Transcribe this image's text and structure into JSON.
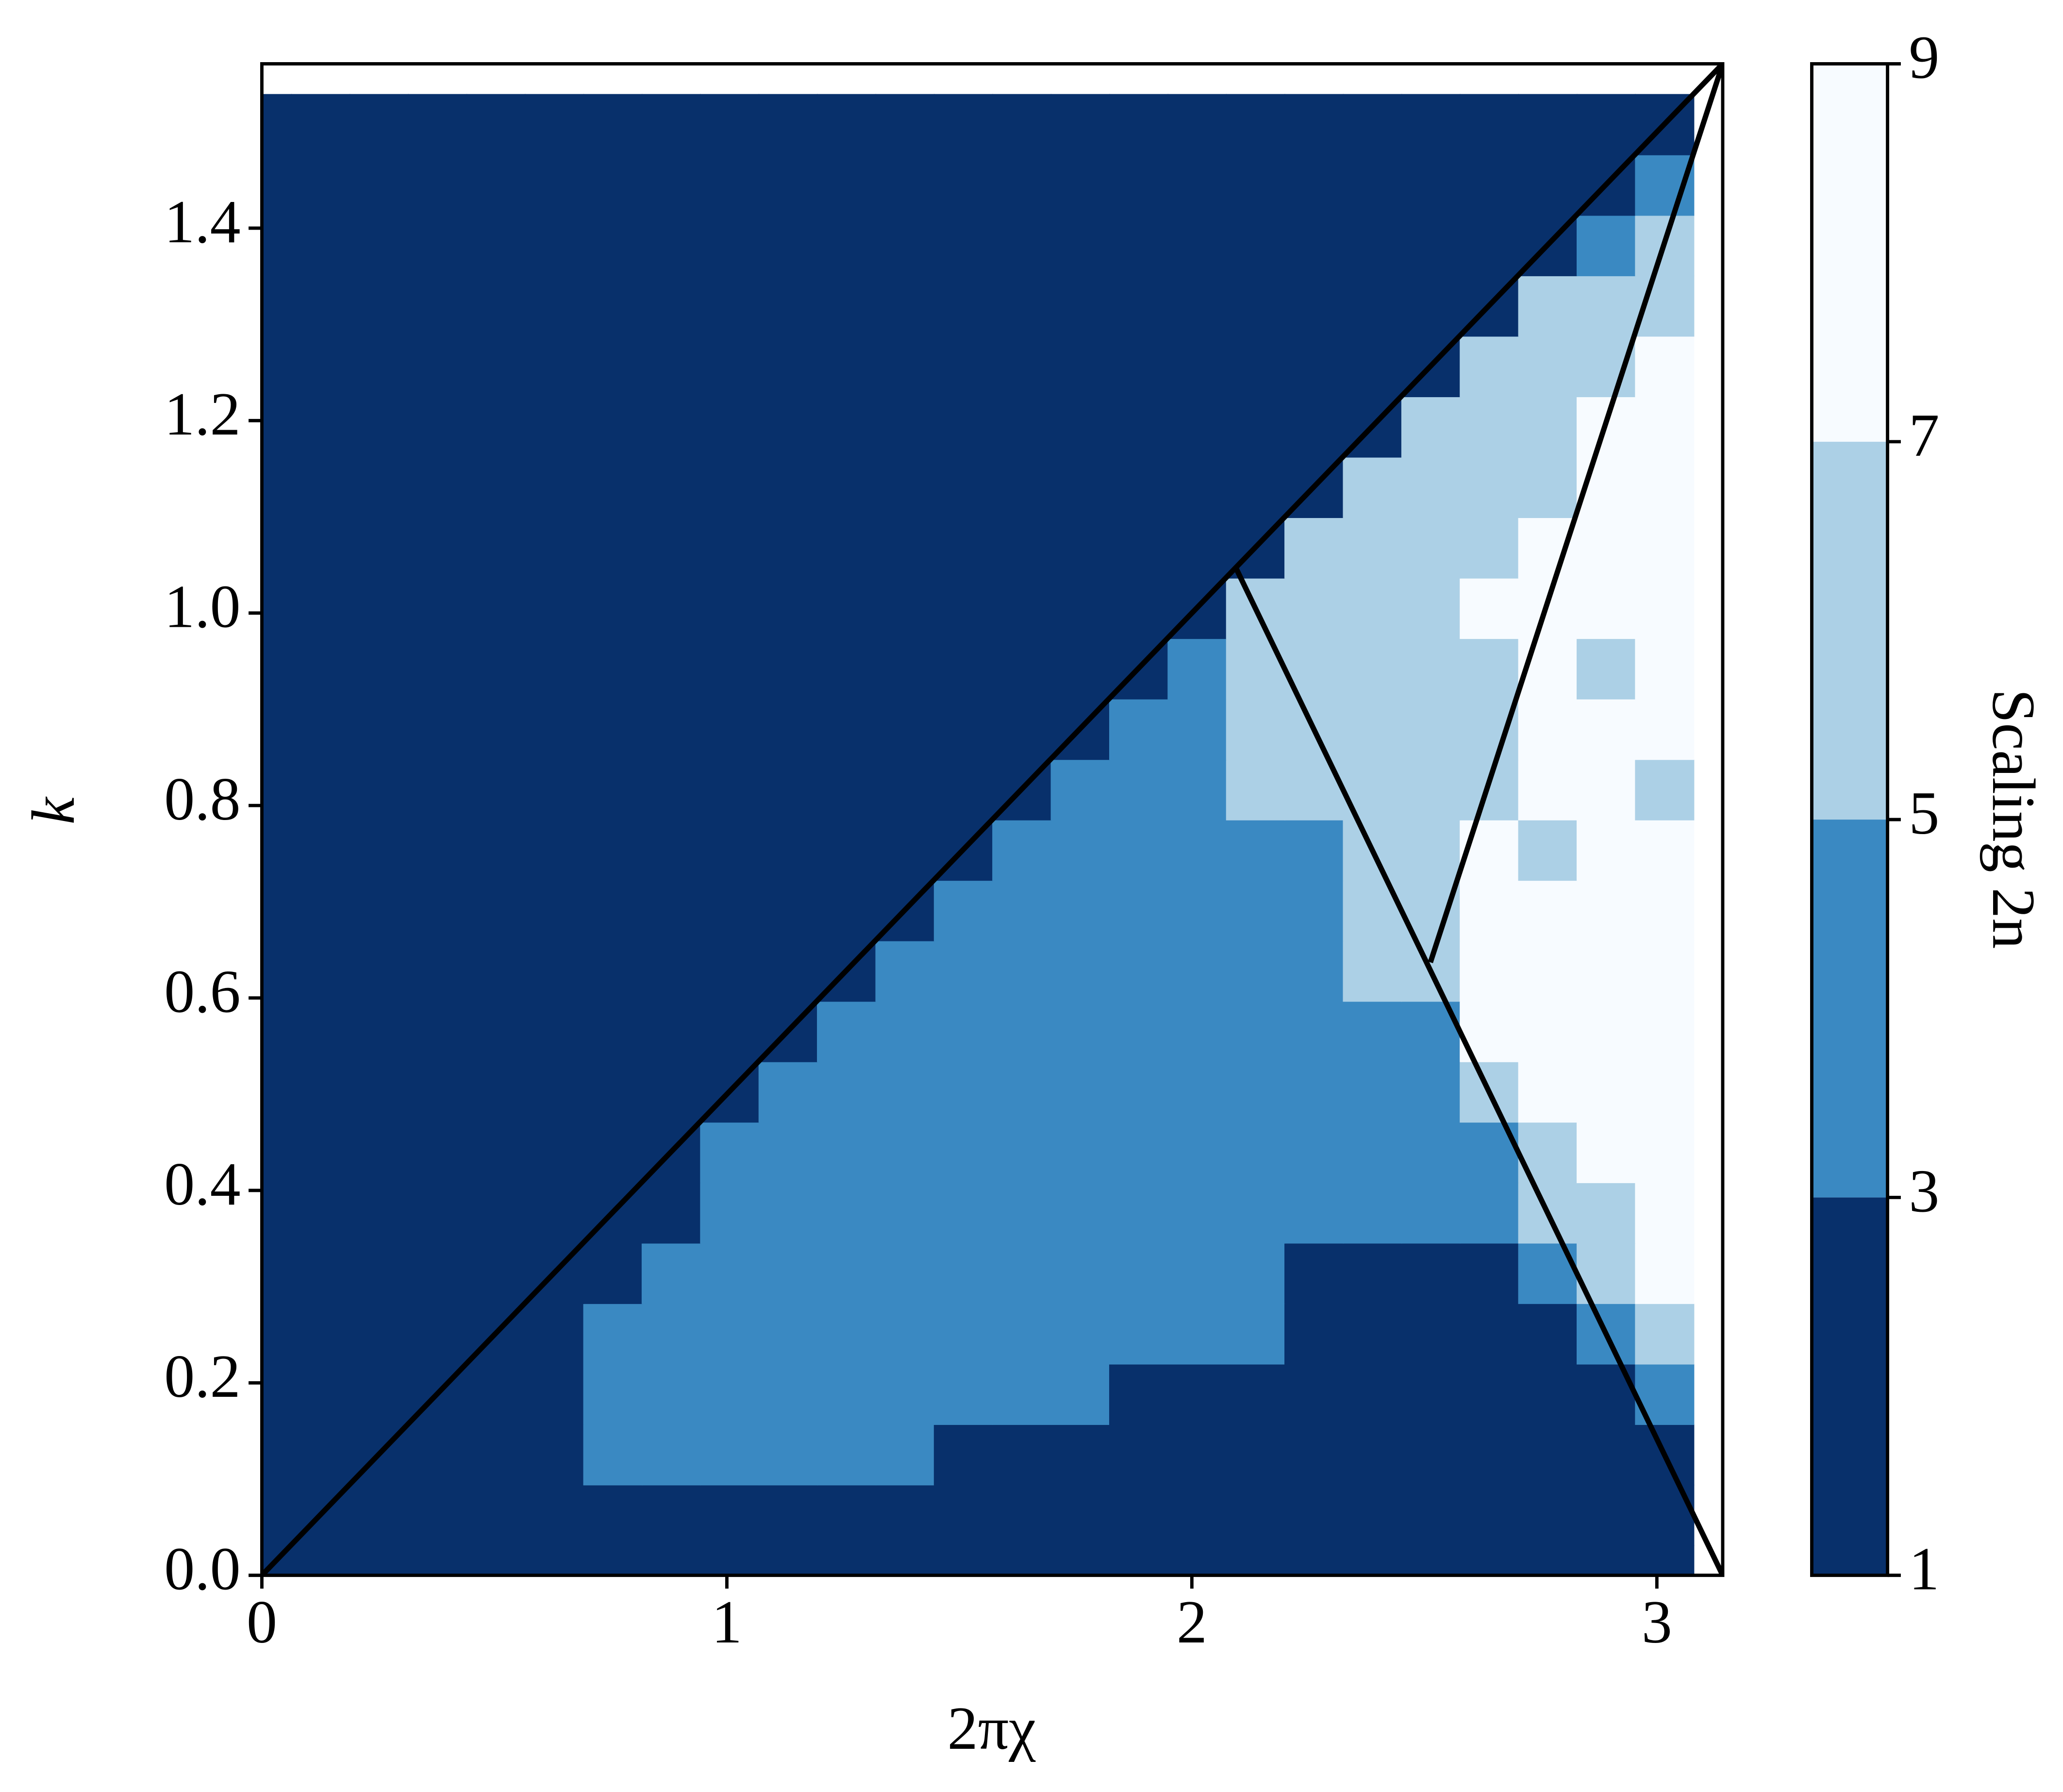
{
  "chart_data": {
    "type": "heatmap",
    "xlabel": "2πχ",
    "ylabel": "k",
    "xlim": [
      0,
      3.1416
    ],
    "ylim": [
      0,
      1.5708
    ],
    "xticks": [
      0,
      1,
      2,
      3
    ],
    "yticks": [
      {
        "value": 0,
        "label": "0.0"
      },
      0.2,
      0.4,
      0.6,
      0.8,
      {
        "value": 1,
        "label": "1.0"
      },
      1.2,
      1.4
    ],
    "x": [
      0,
      0.1257,
      0.2513,
      0.377,
      0.5027,
      0.6283,
      0.754,
      0.8796,
      1.0053,
      1.131,
      1.2566,
      1.3823,
      1.508,
      1.6336,
      1.7593,
      1.885,
      2.0106,
      2.1363,
      2.2619,
      2.3876,
      2.5133,
      2.6389,
      2.7646,
      2.8903,
      3.0159
    ],
    "y": [
      0,
      0.0628,
      0.1257,
      0.1885,
      0.2513,
      0.3142,
      0.377,
      0.4398,
      0.5027,
      0.5655,
      0.6283,
      0.6912,
      0.754,
      0.8168,
      0.8796,
      0.9425,
      1.0053,
      1.0681,
      1.131,
      1.1938,
      1.2566,
      1.3195,
      1.3823,
      1.4451,
      1.508
    ],
    "values": [
      [
        2,
        2,
        2,
        2,
        2,
        2,
        2,
        2,
        2,
        2,
        2,
        2,
        2,
        2,
        2,
        2,
        2,
        2,
        2,
        2,
        2,
        2,
        2,
        2,
        2
      ],
      [
        2,
        2,
        2,
        2,
        2,
        2,
        2,
        2,
        2,
        2,
        2,
        2,
        2,
        2,
        2,
        2,
        2,
        2,
        2,
        2,
        2,
        2,
        2,
        2,
        2
      ],
      [
        2,
        2,
        2,
        2,
        2,
        2,
        4,
        4,
        4,
        4,
        4,
        4,
        2,
        2,
        2,
        2,
        2,
        2,
        2,
        2,
        2,
        2,
        2,
        2,
        2
      ],
      [
        2,
        2,
        2,
        2,
        2,
        2,
        4,
        4,
        4,
        4,
        4,
        4,
        4,
        4,
        4,
        2,
        2,
        2,
        2,
        2,
        2,
        2,
        2,
        2,
        4
      ],
      [
        2,
        2,
        2,
        2,
        2,
        2,
        4,
        4,
        4,
        4,
        4,
        4,
        4,
        4,
        4,
        4,
        4,
        4,
        2,
        2,
        2,
        2,
        2,
        4,
        6
      ],
      [
        2,
        2,
        2,
        2,
        2,
        2,
        2,
        4,
        4,
        4,
        4,
        4,
        4,
        4,
        4,
        4,
        4,
        4,
        2,
        2,
        2,
        2,
        4,
        6,
        8
      ],
      [
        2,
        2,
        2,
        2,
        2,
        2,
        2,
        2,
        4,
        4,
        4,
        4,
        4,
        4,
        4,
        4,
        4,
        4,
        4,
        4,
        4,
        4,
        6,
        6,
        8
      ],
      [
        2,
        2,
        2,
        2,
        2,
        2,
        2,
        2,
        4,
        4,
        4,
        4,
        4,
        4,
        4,
        4,
        4,
        4,
        4,
        4,
        4,
        4,
        6,
        8,
        8
      ],
      [
        2,
        2,
        2,
        2,
        2,
        2,
        2,
        2,
        2,
        4,
        4,
        4,
        4,
        4,
        4,
        4,
        4,
        4,
        4,
        4,
        4,
        6,
        8,
        8,
        8
      ],
      [
        2,
        2,
        2,
        2,
        2,
        2,
        2,
        2,
        2,
        2,
        4,
        4,
        4,
        4,
        4,
        4,
        4,
        4,
        4,
        4,
        4,
        8,
        8,
        8,
        8
      ],
      [
        2,
        2,
        2,
        2,
        2,
        2,
        2,
        2,
        2,
        2,
        2,
        4,
        4,
        4,
        4,
        4,
        4,
        4,
        4,
        6,
        6,
        8,
        8,
        8,
        8
      ],
      [
        2,
        2,
        2,
        2,
        2,
        2,
        2,
        2,
        2,
        2,
        2,
        2,
        4,
        4,
        4,
        4,
        4,
        4,
        4,
        6,
        6,
        8,
        8,
        8,
        8
      ],
      [
        2,
        2,
        2,
        2,
        2,
        2,
        2,
        2,
        2,
        2,
        2,
        2,
        2,
        4,
        4,
        4,
        4,
        4,
        4,
        6,
        6,
        8,
        6,
        8,
        8
      ],
      [
        2,
        2,
        2,
        2,
        2,
        2,
        2,
        2,
        2,
        2,
        2,
        2,
        2,
        2,
        4,
        4,
        4,
        6,
        6,
        6,
        6,
        6,
        8,
        8,
        6
      ],
      [
        2,
        2,
        2,
        2,
        2,
        2,
        2,
        2,
        2,
        2,
        2,
        2,
        2,
        2,
        2,
        4,
        4,
        6,
        6,
        6,
        6,
        6,
        8,
        8,
        8
      ],
      [
        2,
        2,
        2,
        2,
        2,
        2,
        2,
        2,
        2,
        2,
        2,
        2,
        2,
        2,
        2,
        2,
        4,
        6,
        6,
        6,
        6,
        6,
        8,
        6,
        8
      ],
      [
        2,
        2,
        2,
        2,
        2,
        2,
        2,
        2,
        2,
        2,
        2,
        2,
        2,
        2,
        2,
        2,
        2,
        6,
        6,
        6,
        6,
        8,
        8,
        8,
        8
      ],
      [
        2,
        2,
        2,
        2,
        2,
        2,
        2,
        2,
        2,
        2,
        2,
        2,
        2,
        2,
        2,
        2,
        2,
        2,
        6,
        6,
        6,
        6,
        8,
        8,
        8
      ],
      [
        2,
        2,
        2,
        2,
        2,
        2,
        2,
        2,
        2,
        2,
        2,
        2,
        2,
        2,
        2,
        2,
        2,
        2,
        2,
        6,
        6,
        6,
        6,
        8,
        8
      ],
      [
        2,
        2,
        2,
        2,
        2,
        2,
        2,
        2,
        2,
        2,
        2,
        2,
        2,
        2,
        2,
        2,
        2,
        2,
        2,
        2,
        6,
        6,
        6,
        8,
        8
      ],
      [
        2,
        2,
        2,
        2,
        2,
        2,
        2,
        2,
        2,
        2,
        2,
        2,
        2,
        2,
        2,
        2,
        2,
        2,
        2,
        2,
        2,
        6,
        6,
        6,
        8
      ],
      [
        2,
        2,
        2,
        2,
        2,
        2,
        2,
        2,
        2,
        2,
        2,
        2,
        2,
        2,
        2,
        2,
        2,
        2,
        2,
        2,
        2,
        2,
        6,
        6,
        6
      ],
      [
        2,
        2,
        2,
        2,
        2,
        2,
        2,
        2,
        2,
        2,
        2,
        2,
        2,
        2,
        2,
        2,
        2,
        2,
        2,
        2,
        2,
        2,
        2,
        4,
        6
      ],
      [
        2,
        2,
        2,
        2,
        2,
        2,
        2,
        2,
        2,
        2,
        2,
        2,
        2,
        2,
        2,
        2,
        2,
        2,
        2,
        2,
        2,
        2,
        2,
        2,
        4
      ],
      [
        2,
        2,
        2,
        2,
        2,
        2,
        2,
        2,
        2,
        2,
        2,
        2,
        2,
        2,
        2,
        2,
        2,
        2,
        2,
        2,
        2,
        2,
        2,
        2,
        2
      ]
    ],
    "colorbar": {
      "label": "Scaling 2n",
      "lim": [
        1,
        9
      ],
      "ticks": [
        1,
        3,
        5,
        7,
        9
      ],
      "colors": [
        "#08306b",
        "#3a89c2",
        "#acd0e6",
        "#f7fbff"
      ]
    },
    "lines": [
      {
        "color": "#000000",
        "x": [
          0,
          3.1416
        ],
        "y": [
          0,
          1.5708
        ]
      },
      {
        "color": "#000000",
        "x": [
          2.0944,
          3.1416
        ],
        "y": [
          1.0472,
          0
        ]
      },
      {
        "color": "#000000",
        "x": [
          2.513,
          3.1416
        ],
        "y": [
          0.637,
          1.5708
        ]
      }
    ]
  }
}
